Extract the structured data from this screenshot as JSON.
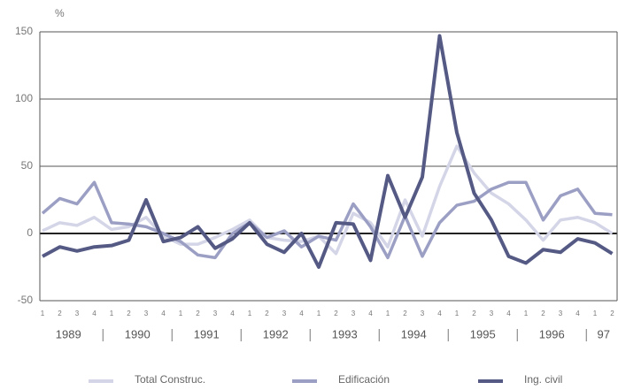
{
  "chart_data": {
    "type": "line",
    "y_unit": "%",
    "categories": [
      "1",
      "2",
      "3",
      "4",
      "1",
      "2",
      "3",
      "4",
      "1",
      "2",
      "3",
      "4",
      "1",
      "2",
      "3",
      "4",
      "1",
      "2",
      "3",
      "4",
      "1",
      "2",
      "3",
      "4",
      "1",
      "2",
      "3",
      "4",
      "1",
      "2",
      "3",
      "4",
      "1",
      "2"
    ],
    "year_labels": [
      "1989",
      "1990",
      "1991",
      "1992",
      "1993",
      "1994",
      "1995",
      "1996",
      "97"
    ],
    "series": [
      {
        "name": "Total Construc.",
        "color": "#d4d6e8",
        "values": [
          2,
          8,
          6,
          12,
          3,
          5,
          12,
          -2,
          -8,
          -8,
          -3,
          3,
          10,
          -3,
          -5,
          -6,
          -2,
          -15,
          15,
          8,
          -10,
          25,
          -2,
          35,
          65,
          45,
          30,
          22,
          10,
          -5,
          10,
          12,
          8,
          0
        ]
      },
      {
        "name": "Edificación",
        "color": "#9c9fc4",
        "values": [
          15,
          26,
          22,
          38,
          8,
          7,
          5,
          0,
          -6,
          -16,
          -18,
          0,
          8,
          -3,
          2,
          -10,
          -2,
          -5,
          22,
          5,
          -18,
          13,
          -17,
          8,
          21,
          24,
          33,
          38,
          38,
          10,
          28,
          33,
          15,
          14
        ]
      },
      {
        "name": "Ing. civil",
        "color": "#555a85",
        "values": [
          -17,
          -10,
          -13,
          -10,
          -9,
          -5,
          25,
          -6,
          -3,
          5,
          -11,
          -4,
          8,
          -8,
          -14,
          0,
          -25,
          8,
          7,
          -20,
          43,
          12,
          42,
          147,
          75,
          30,
          10,
          -17,
          -22,
          -12,
          -14,
          -4,
          -7,
          -15
        ]
      }
    ],
    "ylim": [
      -50,
      150
    ],
    "yticks": [
      -50,
      0,
      50,
      100,
      150
    ],
    "grid": true
  }
}
